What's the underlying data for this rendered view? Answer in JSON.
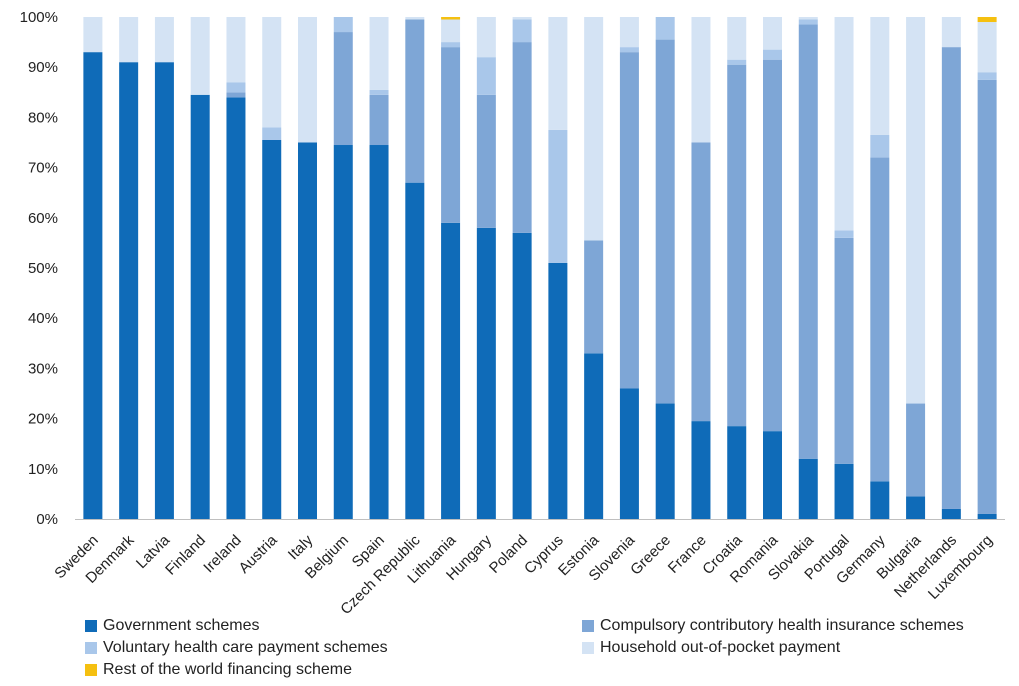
{
  "chart_data": {
    "type": "bar",
    "stacked": true,
    "percent_stacked": true,
    "categories": [
      "Sweden",
      "Denmark",
      "Latvia",
      "Finland",
      "Ireland",
      "Austria",
      "Italy",
      "Belgium",
      "Spain",
      "Czech Republic",
      "Lithuania",
      "Hungary",
      "Poland",
      "Cyprus",
      "Estonia",
      "Slovenia",
      "Greece",
      "France",
      "Croatia",
      "Romania",
      "Slovakia",
      "Portugal",
      "Germany",
      "Bulgaria",
      "Netherlands",
      "Luxembourg"
    ],
    "y_ticks": [
      "0%",
      "10%",
      "20%",
      "30%",
      "40%",
      "50%",
      "60%",
      "70%",
      "80%",
      "90%",
      "100%"
    ],
    "ylim": [
      0,
      100
    ],
    "grid": false,
    "legend_position": "bottom",
    "series": [
      {
        "name": "Government schemes",
        "color": "#0f6bb8",
        "values": [
          93,
          91,
          91,
          84.5,
          84,
          75.5,
          75,
          74.5,
          74.5,
          67,
          59,
          58,
          57,
          51,
          33,
          26,
          23,
          19.5,
          18.5,
          17.5,
          12,
          11,
          7.5,
          4.5,
          2,
          1
        ]
      },
      {
        "name": "Compulsory contributory health insurance schemes",
        "color": "#7ea6d6",
        "values": [
          0,
          0,
          0,
          0,
          1,
          0,
          0,
          22.5,
          10,
          32.5,
          35,
          26.5,
          38,
          0,
          22.5,
          67,
          72.5,
          55.5,
          72,
          74,
          86.5,
          45,
          64.5,
          18.5,
          92,
          86.5
        ]
      },
      {
        "name": "Voluntary health care payment schemes",
        "color": "#a9c7ea",
        "values": [
          0,
          0,
          0,
          0,
          2,
          2.5,
          0,
          3,
          1,
          0,
          1,
          7.5,
          4.5,
          26.5,
          0,
          1,
          4.5,
          0,
          1,
          2,
          1,
          1.5,
          4.5,
          0,
          0,
          1.5
        ]
      },
      {
        "name": "Household out-of-pocket payment",
        "color": "#d4e3f4",
        "values": [
          7,
          9,
          9,
          15.5,
          13,
          22,
          25,
          0,
          14.5,
          0.5,
          4.5,
          8,
          0.5,
          22.5,
          44.5,
          6,
          0,
          25,
          8.5,
          6.5,
          0.5,
          42.5,
          23.5,
          77,
          6,
          10
        ]
      },
      {
        "name": "Rest of the world financing scheme",
        "color": "#f5c010",
        "values": [
          0,
          0,
          0,
          0,
          0,
          0,
          0,
          0,
          0,
          0,
          0.5,
          0,
          0,
          0,
          0,
          0,
          0,
          0,
          0,
          0,
          0,
          0,
          0,
          0,
          0,
          1
        ]
      }
    ]
  },
  "legend": {
    "items": [
      {
        "label": "Government schemes",
        "color": "#0f6bb8"
      },
      {
        "label": "Compulsory contributory health insurance schemes",
        "color": "#7ea6d6"
      },
      {
        "label": "Voluntary health care payment schemes",
        "color": "#a9c7ea"
      },
      {
        "label": "Household out-of-pocket payment",
        "color": "#d4e3f4"
      },
      {
        "label": "Rest of the world financing scheme",
        "color": "#f5c010"
      }
    ]
  }
}
